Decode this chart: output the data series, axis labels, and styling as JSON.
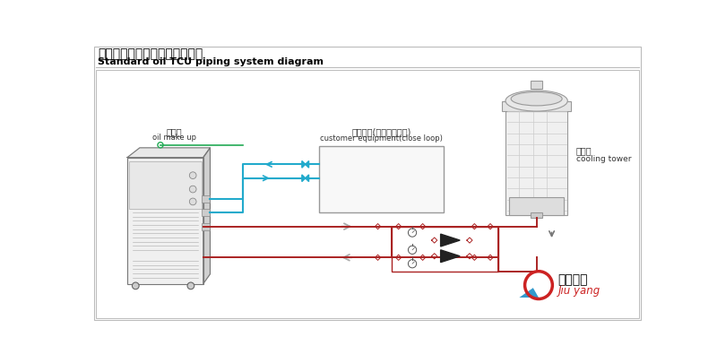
{
  "title_cn": "標準油溫機外部管路連接參考圖",
  "title_en": "Standard oil TCU piping system diagram",
  "bg_color": "#ffffff",
  "label_oilmakeup_cn": "補油口",
  "label_oilmakeup_en": "oil make up",
  "label_customer_cn": "客戶設備(需密閉承壓式)",
  "label_customer_en": "customer equipment(close loop)",
  "label_coolingtower_cn": "冷卻塔",
  "label_coolingtower_en": "cooling tower",
  "color_green": "#22aa55",
  "color_cyan": "#22aacc",
  "color_red": "#aa2222",
  "color_line": "#999999",
  "logo_circle_color": "#cc2222",
  "logo_tri_color": "#3399cc",
  "logo_cn": "久阳机械",
  "logo_en": "Jiu yang"
}
